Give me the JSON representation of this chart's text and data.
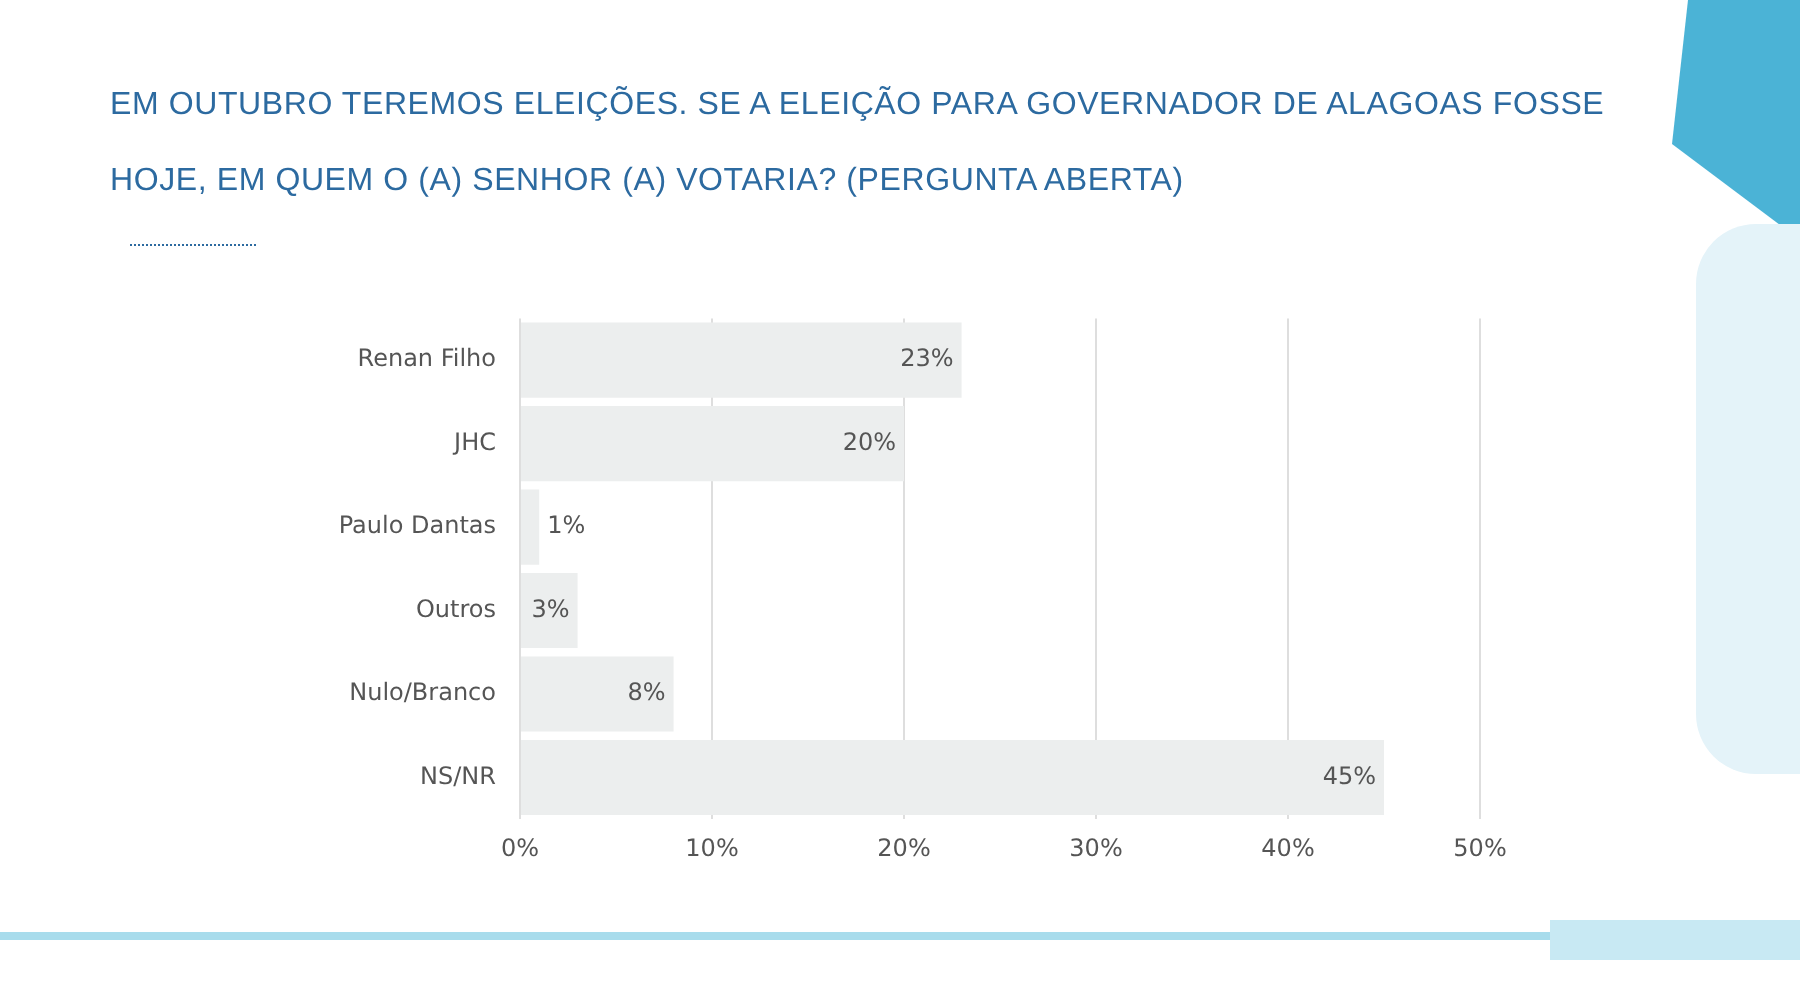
{
  "chart_data": {
    "type": "bar",
    "orientation": "horizontal",
    "title": "EM OUTUBRO TEREMOS ELEIÇÕES. SE A ELEIÇÃO PARA GOVERNADOR DE ALAGOAS FOSSE HOJE, EM QUEM O (A) SENHOR (A) VOTARIA? (PERGUNTA ABERTA)",
    "categories": [
      "Renan Filho",
      "JHC",
      "Paulo Dantas",
      "Outros",
      "Nulo/Branco",
      "NS/NR"
    ],
    "values": [
      23,
      20,
      1,
      3,
      8,
      45
    ],
    "value_labels": [
      "23%",
      "20%",
      "1%",
      "3%",
      "8%",
      "45%"
    ],
    "color": "#eceeee",
    "xlim": [
      0,
      50
    ],
    "xticks": [
      {
        "value": 0,
        "label": "0%"
      },
      {
        "value": 10,
        "label": "10%"
      },
      {
        "value": 20,
        "label": "20%"
      },
      {
        "value": 30,
        "label": "30%"
      },
      {
        "value": 40,
        "label": "40%"
      },
      {
        "value": 50,
        "label": "50%"
      }
    ],
    "grid": "x"
  }
}
